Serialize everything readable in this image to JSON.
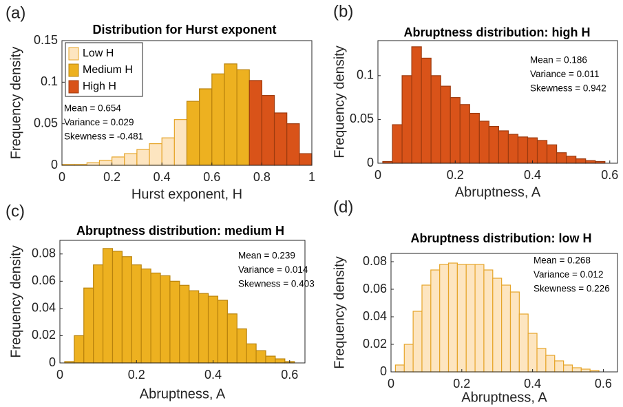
{
  "chart_data": [
    {
      "type": "histogram",
      "panel_label": "(a)",
      "title": "Distribution for Hurst exponent",
      "x_label": "Hurst exponent, H",
      "y_label": "Frequency density",
      "xlim": [
        0,
        1
      ],
      "xticks": [
        0,
        0.2,
        0.4,
        0.6,
        0.8,
        1
      ],
      "ylim": [
        0,
        0.15
      ],
      "yticks": [
        0,
        0.05,
        0.1,
        0.15
      ],
      "legend": "upper left",
      "series": [
        {
          "name": "Low H",
          "color": "#fde5c0",
          "bins": [
            0,
            0.05,
            0.1,
            0.15,
            0.2,
            0.25,
            0.3,
            0.35,
            0.4,
            0.45,
            0.5
          ],
          "values": [
            0.001,
            0.001,
            0.003,
            0.006,
            0.01,
            0.014,
            0.019,
            0.026,
            0.033,
            0.055
          ]
        },
        {
          "name": "Medium H",
          "color": "#edb120",
          "bins": [
            0.5,
            0.55,
            0.6,
            0.65,
            0.7,
            0.75
          ],
          "values": [
            0.077,
            0.092,
            0.11,
            0.122,
            0.115
          ]
        },
        {
          "name": "High H",
          "color": "#d95319",
          "bins": [
            0.75,
            0.8,
            0.85,
            0.9,
            0.95,
            1
          ],
          "values": [
            0.102,
            0.084,
            0.063,
            0.05,
            0.014
          ]
        }
      ],
      "annotations": [
        "Mean = 0.654",
        "Variance = 0.029",
        "Skewness = -0.481"
      ]
    },
    {
      "type": "histogram",
      "panel_label": "(b)",
      "title": "Abruptness distribution:  high H",
      "x_label": "Abruptness, A",
      "y_label": "Frequency density",
      "xlim": [
        0,
        0.62
      ],
      "xticks": [
        0,
        0.2,
        0.4,
        0.6
      ],
      "ylim": [
        0,
        0.14
      ],
      "yticks": [
        0,
        0.05,
        0.1
      ],
      "color": "#d95319",
      "bins": [
        0.0125,
        0.0375,
        0.0625,
        0.0875,
        0.1125,
        0.1375,
        0.1625,
        0.1875,
        0.2125,
        0.2375,
        0.2625,
        0.2875,
        0.3125,
        0.3375,
        0.3625,
        0.3875,
        0.4125,
        0.4375,
        0.4625,
        0.4875,
        0.5125,
        0.5375,
        0.5625,
        0.5875
      ],
      "values": [
        0.002,
        0.044,
        0.1,
        0.133,
        0.12,
        0.1,
        0.088,
        0.075,
        0.067,
        0.057,
        0.048,
        0.042,
        0.037,
        0.033,
        0.03,
        0.029,
        0.026,
        0.021,
        0.012,
        0.008,
        0.005,
        0.003,
        0.002
      ],
      "annotations": [
        "Mean = 0.186",
        "Variance = 0.011",
        "Skewness = 0.942"
      ]
    },
    {
      "type": "histogram",
      "panel_label": "(c)",
      "title": "Abruptness distribution: medium H",
      "x_label": "Abruptness, A",
      "y_label": "Frequency density",
      "xlim": [
        0,
        0.64
      ],
      "xticks": [
        0,
        0.2,
        0.4,
        0.6
      ],
      "ylim": [
        0,
        0.09
      ],
      "yticks": [
        0,
        0.02,
        0.04,
        0.06,
        0.08
      ],
      "color": "#edb120",
      "bins": [
        0.0125,
        0.0375,
        0.0625,
        0.0875,
        0.1125,
        0.1375,
        0.1625,
        0.1875,
        0.2125,
        0.2375,
        0.2625,
        0.2875,
        0.3125,
        0.3375,
        0.3625,
        0.3875,
        0.4125,
        0.4375,
        0.4625,
        0.4875,
        0.5125,
        0.5375,
        0.5625,
        0.5875,
        0.6125
      ],
      "values": [
        0.001,
        0.02,
        0.055,
        0.072,
        0.084,
        0.082,
        0.078,
        0.072,
        0.069,
        0.066,
        0.064,
        0.06,
        0.057,
        0.053,
        0.051,
        0.049,
        0.046,
        0.036,
        0.025,
        0.014,
        0.009,
        0.005,
        0.003,
        0.001
      ],
      "annotations": [
        "Mean = 0.239",
        "Variance = 0.014",
        "Skewness = 0.403"
      ]
    },
    {
      "type": "histogram",
      "panel_label": "(d)",
      "title": "Abruptness distribution:  low H",
      "x_label": "Abruptness, A",
      "y_label": "Frequency density",
      "xlim": [
        0,
        0.64
      ],
      "xticks": [
        0,
        0.2,
        0.4,
        0.6
      ],
      "ylim": [
        0,
        0.086
      ],
      "yticks": [
        0,
        0.02,
        0.04,
        0.06,
        0.08
      ],
      "color": "#fde5c0",
      "bins": [
        0.0125,
        0.0375,
        0.0625,
        0.0875,
        0.1125,
        0.1375,
        0.1625,
        0.1875,
        0.2125,
        0.2375,
        0.2625,
        0.2875,
        0.3125,
        0.3375,
        0.3625,
        0.3875,
        0.4125,
        0.4375,
        0.4625,
        0.4875,
        0.5125,
        0.5375,
        0.5625,
        0.5875
      ],
      "values": [
        0.005,
        0.02,
        0.044,
        0.063,
        0.074,
        0.078,
        0.079,
        0.078,
        0.078,
        0.078,
        0.074,
        0.068,
        0.063,
        0.058,
        0.042,
        0.028,
        0.017,
        0.012,
        0.008,
        0.005,
        0.003,
        0.002,
        0.001
      ],
      "annotations": [
        "Mean = 0.268",
        "Variance = 0.012",
        "Skewness = 0.226"
      ]
    }
  ]
}
